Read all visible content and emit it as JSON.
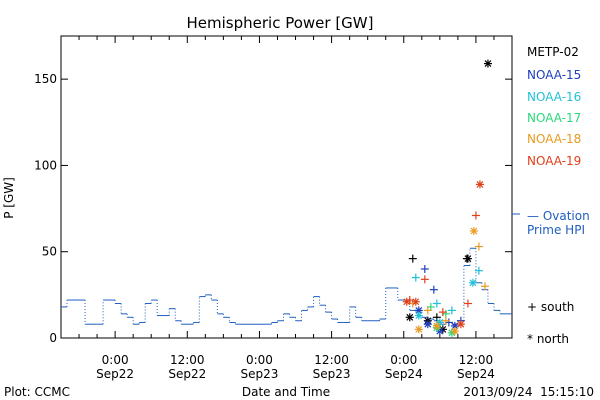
{
  "chart_data": {
    "type": "line",
    "title": "Hemispheric Power [GW]",
    "xlabel": "Date and Time",
    "ylabel": "P [GW]",
    "xlim": [
      "2013-09-21T15:00",
      "2013-09-24T18:00"
    ],
    "ylim": [
      0,
      175
    ],
    "y_ticks": [
      0,
      50,
      100,
      150
    ],
    "x_ticks": [
      {
        "time": "2013-09-22T00:00",
        "top": "0:00",
        "bottom": "Sep22"
      },
      {
        "time": "2013-09-22T12:00",
        "top": "12:00",
        "bottom": "Sep22"
      },
      {
        "time": "2013-09-23T00:00",
        "top": "0:00",
        "bottom": "Sep23"
      },
      {
        "time": "2013-09-23T12:00",
        "top": "12:00",
        "bottom": "Sep23"
      },
      {
        "time": "2013-09-24T00:00",
        "top": "0:00",
        "bottom": "Sep24"
      },
      {
        "time": "2013-09-24T12:00",
        "top": "12:00",
        "bottom": "Sep24"
      }
    ],
    "ovation": {
      "label_line1": "— Ovation",
      "label_line2": "Prime HPI",
      "color": "#1f5fbf",
      "points": [
        [
          "2013-09-21T15:00",
          18
        ],
        [
          "2013-09-21T16:00",
          22
        ],
        [
          "2013-09-21T18:00",
          22
        ],
        [
          "2013-09-21T19:00",
          8
        ],
        [
          "2013-09-21T21:00",
          8
        ],
        [
          "2013-09-21T22:00",
          22
        ],
        [
          "2013-09-22T00:00",
          20
        ],
        [
          "2013-09-22T01:00",
          14
        ],
        [
          "2013-09-22T02:00",
          12
        ],
        [
          "2013-09-22T03:00",
          8
        ],
        [
          "2013-09-22T04:00",
          9
        ],
        [
          "2013-09-22T05:00",
          20
        ],
        [
          "2013-09-22T06:00",
          22
        ],
        [
          "2013-09-22T07:00",
          13
        ],
        [
          "2013-09-22T09:00",
          17
        ],
        [
          "2013-09-22T10:00",
          10
        ],
        [
          "2013-09-22T11:00",
          8
        ],
        [
          "2013-09-22T13:00",
          9
        ],
        [
          "2013-09-22T14:00",
          24
        ],
        [
          "2013-09-22T15:00",
          25
        ],
        [
          "2013-09-22T16:00",
          22
        ],
        [
          "2013-09-22T17:00",
          14
        ],
        [
          "2013-09-22T18:00",
          12
        ],
        [
          "2013-09-22T19:00",
          9
        ],
        [
          "2013-09-22T20:00",
          8
        ],
        [
          "2013-09-22T21:00",
          8
        ],
        [
          "2013-09-23T01:00",
          8
        ],
        [
          "2013-09-23T02:00",
          9
        ],
        [
          "2013-09-23T03:00",
          10
        ],
        [
          "2013-09-23T04:00",
          14
        ],
        [
          "2013-09-23T05:00",
          12
        ],
        [
          "2013-09-23T06:00",
          10
        ],
        [
          "2013-09-23T07:00",
          16
        ],
        [
          "2013-09-23T08:00",
          18
        ],
        [
          "2013-09-23T09:00",
          24
        ],
        [
          "2013-09-23T10:00",
          19
        ],
        [
          "2013-09-23T11:00",
          15
        ],
        [
          "2013-09-23T12:00",
          11
        ],
        [
          "2013-09-23T13:00",
          9
        ],
        [
          "2013-09-23T14:00",
          9
        ],
        [
          "2013-09-23T15:00",
          18
        ],
        [
          "2013-09-23T16:00",
          12
        ],
        [
          "2013-09-23T17:00",
          10
        ],
        [
          "2013-09-23T18:00",
          10
        ],
        [
          "2013-09-23T19:00",
          10
        ],
        [
          "2013-09-23T20:00",
          11
        ],
        [
          "2013-09-23T21:00",
          29
        ],
        [
          "2013-09-23T23:00",
          22
        ],
        [
          "2013-09-24T00:00",
          22
        ],
        [
          "2013-09-24T01:00",
          16
        ],
        [
          "2013-09-24T02:00",
          15
        ],
        [
          "2013-09-24T03:00",
          12
        ],
        [
          "2013-09-24T04:00",
          11
        ],
        [
          "2013-09-24T05:00",
          10
        ],
        [
          "2013-09-24T06:00",
          8
        ],
        [
          "2013-09-24T07:00",
          9
        ],
        [
          "2013-09-24T08:00",
          8
        ],
        [
          "2013-09-24T09:00",
          10
        ],
        [
          "2013-09-24T10:00",
          42
        ],
        [
          "2013-09-24T11:00",
          52
        ],
        [
          "2013-09-24T12:00",
          32
        ],
        [
          "2013-09-24T13:00",
          28
        ],
        [
          "2013-09-24T14:00",
          20
        ],
        [
          "2013-09-24T15:00",
          16
        ],
        [
          "2013-09-24T16:00",
          14
        ],
        [
          "2013-09-24T17:00",
          14
        ]
      ]
    },
    "series": [
      {
        "name": "METP-02",
        "color": "#000000",
        "south": [
          [
            "2013-09-24T01:30",
            46
          ],
          [
            "2013-09-24T05:30",
            12
          ],
          [
            "2013-09-24T10:30",
            46
          ]
        ],
        "north": [
          [
            "2013-09-24T01:00",
            12
          ],
          [
            "2013-09-24T04:00",
            10
          ],
          [
            "2013-09-24T06:30",
            5
          ],
          [
            "2013-09-24T10:40",
            46
          ],
          [
            "2013-09-24T14:00",
            159
          ]
        ]
      },
      {
        "name": "NOAA-15",
        "color": "#1f3fbf",
        "south": [
          [
            "2013-09-24T03:30",
            40
          ],
          [
            "2013-09-24T05:00",
            28
          ],
          [
            "2013-09-24T07:30",
            9
          ],
          [
            "2013-09-24T09:30",
            10
          ]
        ],
        "north": [
          [
            "2013-09-24T02:30",
            16
          ],
          [
            "2013-09-24T04:00",
            8
          ],
          [
            "2013-09-24T06:00",
            4
          ],
          [
            "2013-09-24T08:30",
            7
          ]
        ]
      },
      {
        "name": "NOAA-16",
        "color": "#22c0d8",
        "south": [
          [
            "2013-09-24T02:00",
            35
          ],
          [
            "2013-09-24T05:30",
            20
          ],
          [
            "2013-09-24T08:00",
            16
          ],
          [
            "2013-09-24T12:30",
            39
          ]
        ],
        "north": [
          [
            "2013-09-24T02:30",
            13
          ],
          [
            "2013-09-24T06:00",
            9
          ],
          [
            "2013-09-24T11:30",
            32
          ]
        ]
      },
      {
        "name": "NOAA-17",
        "color": "#2ad87a",
        "south": [
          [
            "2013-09-24T04:30",
            18
          ],
          [
            "2013-09-24T07:00",
            14
          ]
        ],
        "north": [
          [
            "2013-09-24T05:30",
            6
          ],
          [
            "2013-09-24T08:00",
            3
          ]
        ]
      },
      {
        "name": "NOAA-18",
        "color": "#e89a20",
        "south": [
          [
            "2013-09-24T01:30",
            20
          ],
          [
            "2013-09-24T04:00",
            16
          ],
          [
            "2013-09-24T07:00",
            10
          ],
          [
            "2013-09-24T12:30",
            53
          ],
          [
            "2013-09-24T13:30",
            30
          ]
        ],
        "north": [
          [
            "2013-09-24T02:30",
            5
          ],
          [
            "2013-09-24T05:30",
            7
          ],
          [
            "2013-09-24T08:30",
            4
          ],
          [
            "2013-09-24T11:40",
            62
          ]
        ]
      },
      {
        "name": "NOAA-19",
        "color": "#e0401a",
        "south": [
          [
            "2013-09-24T01:00",
            22
          ],
          [
            "2013-09-24T03:30",
            34
          ],
          [
            "2013-09-24T06:30",
            15
          ],
          [
            "2013-09-24T10:40",
            20
          ],
          [
            "2013-09-24T12:00",
            71
          ]
        ],
        "north": [
          [
            "2013-09-24T00:30",
            21
          ],
          [
            "2013-09-24T02:00",
            21
          ],
          [
            "2013-09-24T09:30",
            8
          ],
          [
            "2013-09-24T12:40",
            89
          ]
        ]
      }
    ],
    "symbol_legend": {
      "south": "+ south",
      "north": "* north"
    }
  },
  "footer": {
    "left": "Plot: CCMC",
    "right": "2013/09/24  15:15:10"
  }
}
